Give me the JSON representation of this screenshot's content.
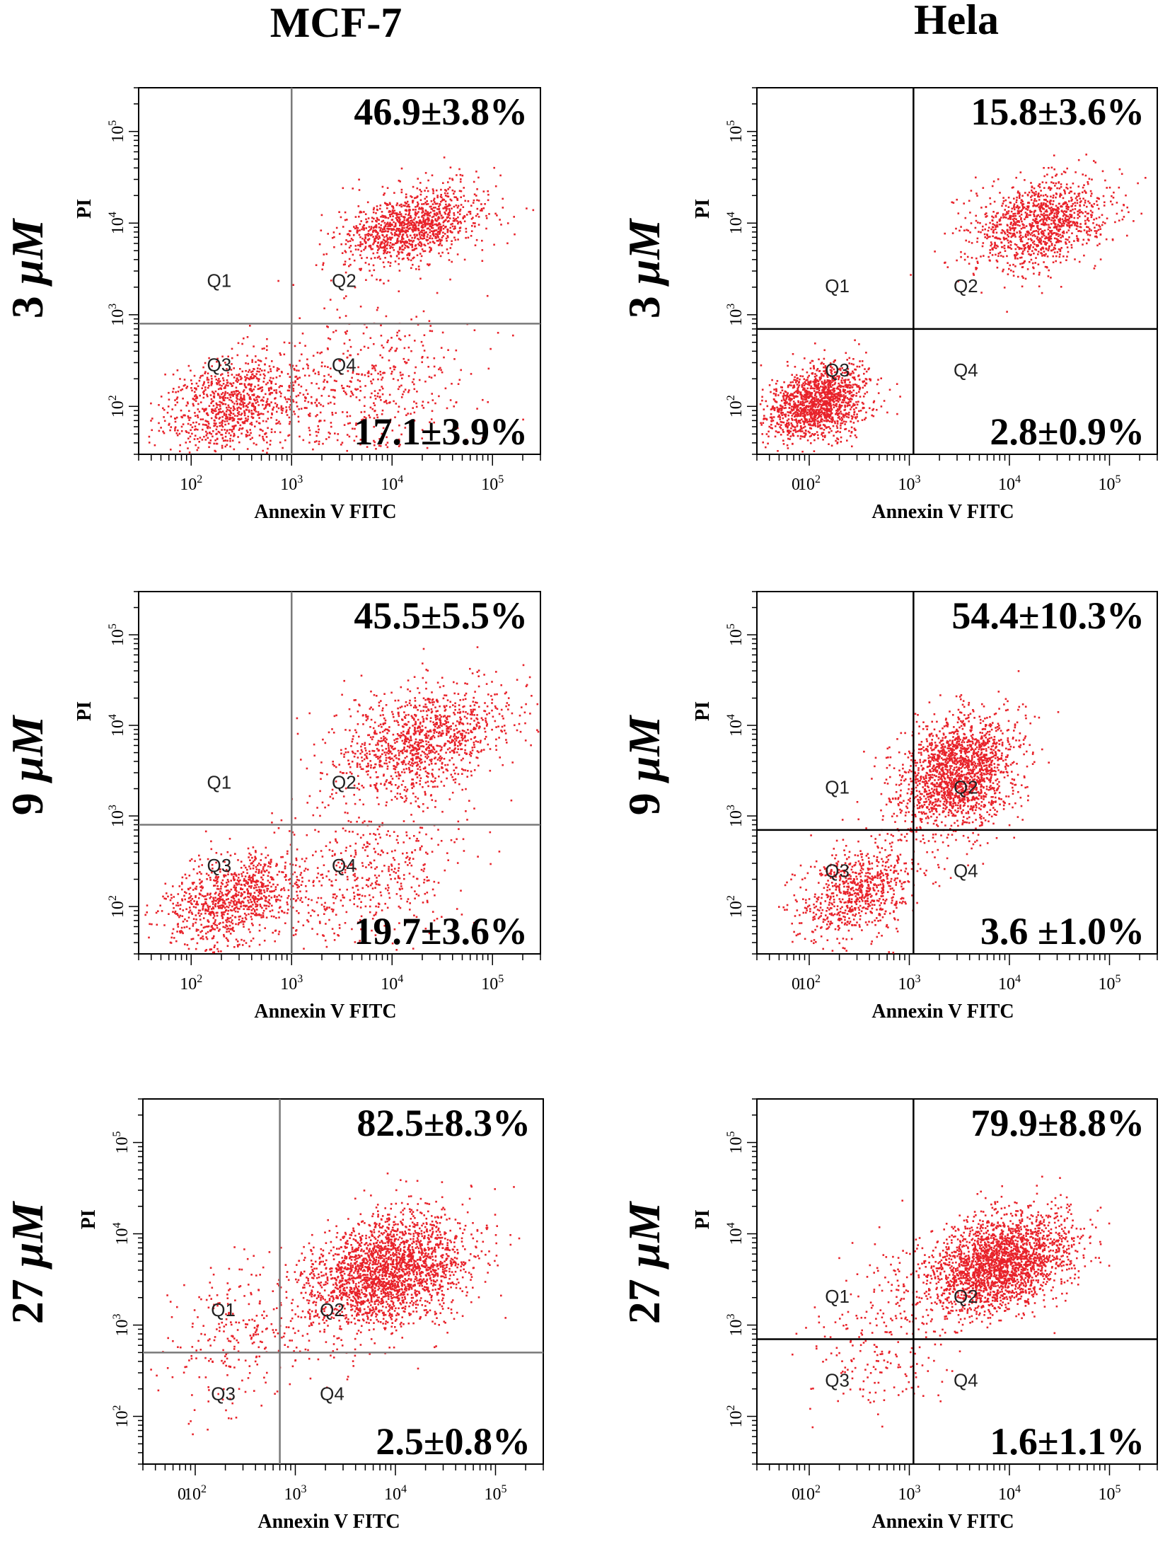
{
  "colors": {
    "dots": "#e8222a",
    "dense": "#ff2a1a",
    "frame": "#000000",
    "gate_mcf7": "#7a7a7a",
    "gate_hela": "#000000"
  },
  "columns": [
    "MCF-7",
    "Hela"
  ],
  "rows": [
    {
      "num": "3",
      "unit": "μM"
    },
    {
      "num": "9",
      "unit": "μM"
    },
    {
      "num": "27",
      "unit": "μM"
    }
  ],
  "common": {
    "x_axis_label": "Annexin V FITC",
    "y_axis_label": "PI",
    "quadrants": [
      "Q1",
      "Q2",
      "Q3",
      "Q4"
    ],
    "tick_base": "10",
    "tick_exponents": [
      "2",
      "3",
      "4",
      "5"
    ],
    "zero_label": "0"
  },
  "chart_data": [
    {
      "type": "scatter",
      "cell_line": "MCF-7",
      "concentration": "3 μM",
      "upper_right_label": "46.9±3.8%",
      "lower_right_label": "17.1±3.9%",
      "xlabel": "Annexin V FITC",
      "ylabel": "PI",
      "x_scale": "log",
      "y_scale": "log",
      "xlim": [
        30,
        300000
      ],
      "ylim": [
        30,
        300000
      ],
      "gate": {
        "x": 1000,
        "y": 800
      },
      "clusters": [
        {
          "label": "Q3",
          "cx": 250,
          "cy": 110,
          "spread": [
            0.35,
            0.25
          ],
          "weight": 0.35
        },
        {
          "label": "Q2",
          "cx": 15000,
          "cy": 9000,
          "spread": [
            0.35,
            0.2
          ],
          "weight": 0.45
        },
        {
          "label": "Q4",
          "cx": 5000,
          "cy": 150,
          "spread": [
            0.5,
            0.4
          ],
          "weight": 0.2
        }
      ]
    },
    {
      "type": "scatter",
      "cell_line": "Hela",
      "concentration": "3 μM",
      "upper_right_label": "15.8±3.6%",
      "lower_right_label": "2.8±0.9%",
      "xlabel": "Annexin V FITC",
      "ylabel": "PI",
      "x_scale": "log",
      "y_scale": "log",
      "xlim": [
        30,
        300000
      ],
      "ylim": [
        30,
        300000
      ],
      "gate": {
        "x": 1100,
        "y": 700
      },
      "clusters": [
        {
          "label": "Q3",
          "cx": 120,
          "cy": 110,
          "spread": [
            0.25,
            0.2
          ],
          "weight": 0.55
        },
        {
          "label": "Q2",
          "cx": 20000,
          "cy": 10000,
          "spread": [
            0.35,
            0.25
          ],
          "weight": 0.45
        }
      ]
    },
    {
      "type": "scatter",
      "cell_line": "MCF-7",
      "concentration": "9 μM",
      "upper_right_label": "45.5±5.5%",
      "lower_right_label": "19.7±3.6%",
      "xlabel": "Annexin V FITC",
      "ylabel": "PI",
      "x_scale": "log",
      "y_scale": "log",
      "xlim": [
        30,
        300000
      ],
      "ylim": [
        30,
        300000
      ],
      "gate": {
        "x": 1000,
        "y": 800
      },
      "clusters": [
        {
          "label": "Q3",
          "cx": 250,
          "cy": 120,
          "spread": [
            0.35,
            0.25
          ],
          "weight": 0.35
        },
        {
          "label": "Q2",
          "cx": 20000,
          "cy": 7000,
          "spread": [
            0.45,
            0.3
          ],
          "weight": 0.45
        },
        {
          "label": "Q4",
          "cx": 5000,
          "cy": 200,
          "spread": [
            0.5,
            0.4
          ],
          "weight": 0.2
        }
      ]
    },
    {
      "type": "scatter",
      "cell_line": "Hela",
      "concentration": "9 μM",
      "upper_right_label": "54.4±10.3%",
      "lower_right_label": "3.6 ±1.0%",
      "xlabel": "Annexin V FITC",
      "ylabel": "PI",
      "x_scale": "log",
      "y_scale": "log",
      "xlim": [
        30,
        300000
      ],
      "ylim": [
        30,
        300000
      ],
      "gate": {
        "x": 1100,
        "y": 700
      },
      "clusters": [
        {
          "label": "Q3",
          "cx": 300,
          "cy": 150,
          "spread": [
            0.3,
            0.25
          ],
          "weight": 0.3
        },
        {
          "label": "Q2",
          "cx": 3000,
          "cy": 3000,
          "spread": [
            0.3,
            0.3
          ],
          "weight": 0.7
        }
      ]
    },
    {
      "type": "scatter",
      "cell_line": "MCF-7",
      "concentration": "27 μM",
      "upper_right_label": "82.5±8.3%",
      "lower_right_label": "2.5±0.8%",
      "xlabel": "Annexin V FITC",
      "ylabel": "PI",
      "x_scale": "log",
      "y_scale": "log",
      "xlim": [
        30,
        300000
      ],
      "ylim": [
        30,
        300000
      ],
      "gate": {
        "x": 700,
        "y": 500
      },
      "clusters": [
        {
          "label": "Q2",
          "cx": 8000,
          "cy": 4000,
          "spread": [
            0.4,
            0.3
          ],
          "weight": 0.9
        },
        {
          "label": "Q1",
          "cx": 300,
          "cy": 800,
          "spread": [
            0.4,
            0.4
          ],
          "weight": 0.1
        }
      ]
    },
    {
      "type": "scatter",
      "cell_line": "Hela",
      "concentration": "27 μM",
      "upper_right_label": "79.9±8.8%",
      "lower_right_label": "1.6±1.1%",
      "xlabel": "Annexin V FITC",
      "ylabel": "PI",
      "x_scale": "log",
      "y_scale": "log",
      "xlim": [
        30,
        300000
      ],
      "ylim": [
        30,
        300000
      ],
      "gate": {
        "x": 1100,
        "y": 700
      },
      "clusters": [
        {
          "label": "Q2",
          "cx": 8000,
          "cy": 5000,
          "spread": [
            0.35,
            0.25
          ],
          "weight": 0.9
        },
        {
          "label": "Q1",
          "cx": 600,
          "cy": 800,
          "spread": [
            0.4,
            0.4
          ],
          "weight": 0.1
        }
      ]
    }
  ]
}
